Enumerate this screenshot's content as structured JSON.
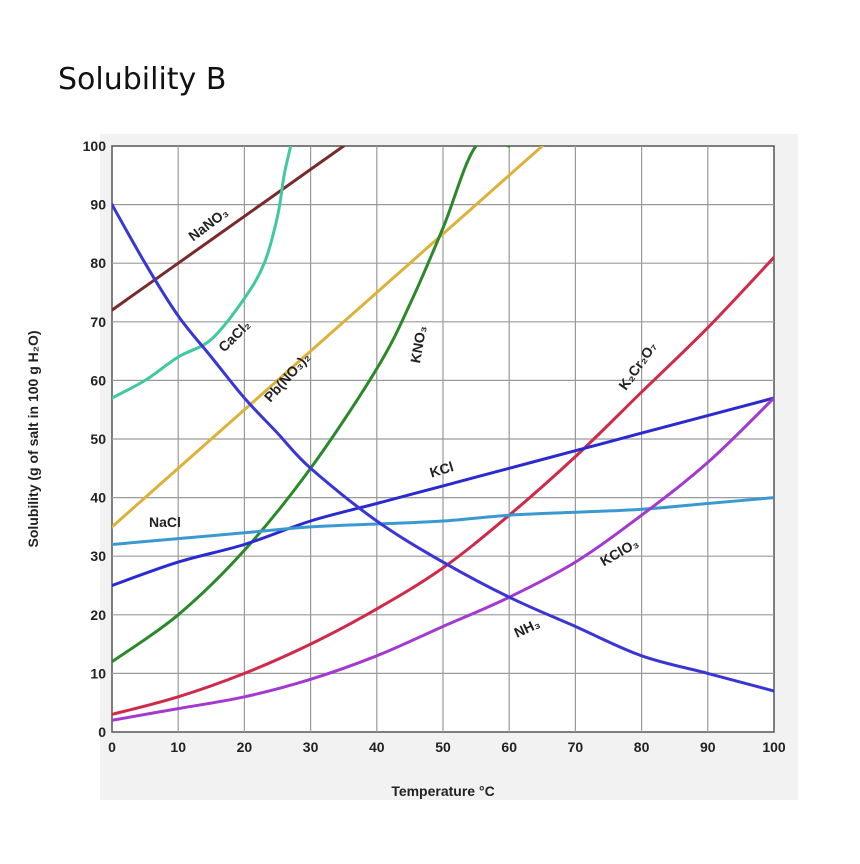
{
  "page": {
    "title": "Solubility B"
  },
  "chart_data": {
    "type": "line",
    "xlabel": "Temperature °C",
    "ylabel": "Solubility (g of salt in 100 g H₂O)",
    "xlim": [
      0,
      100
    ],
    "ylim": [
      0,
      100
    ],
    "x_ticks": [
      "0",
      "10",
      "20",
      "30",
      "40",
      "50",
      "60",
      "70",
      "80",
      "90",
      "100"
    ],
    "y_ticks": [
      "0",
      "10",
      "20",
      "30",
      "40",
      "50",
      "60",
      "70",
      "80",
      "90",
      "100"
    ],
    "grid": true,
    "series": [
      {
        "name": "NaNO₃",
        "color": "#7a2a2a",
        "x": [
          0,
          10,
          20,
          30,
          35
        ],
        "y": [
          72,
          80,
          88,
          96,
          100
        ],
        "label": {
          "x": 15,
          "y": 86,
          "angle": -37
        }
      },
      {
        "name": "CaCl₂",
        "color": "#3ec9a0",
        "x": [
          0,
          5,
          10,
          15,
          20,
          23,
          25,
          26,
          27
        ],
        "y": [
          57,
          60,
          64,
          67,
          74,
          80,
          88,
          95,
          100
        ],
        "label": {
          "x": 19,
          "y": 67,
          "angle": -45
        }
      },
      {
        "name": "Pb(NO₃)₂",
        "color": "#dcb23a",
        "x": [
          0,
          10,
          20,
          30,
          40,
          50,
          60,
          65
        ],
        "y": [
          35,
          45,
          55,
          65,
          75,
          85,
          95,
          100
        ],
        "label": {
          "x": 27,
          "y": 60,
          "angle": -48
        }
      },
      {
        "name": "KNO₃",
        "color": "#2a8a2a",
        "x": [
          0,
          10,
          20,
          30,
          40,
          45,
          50,
          55,
          60
        ],
        "y": [
          12,
          20,
          31,
          45,
          62,
          73,
          86,
          100,
          100
        ],
        "label": {
          "x": 47,
          "y": 66,
          "angle": -80
        }
      },
      {
        "name": "K₂Cr₂O₇",
        "color": "#d02a4a",
        "x": [
          0,
          10,
          20,
          30,
          40,
          50,
          60,
          70,
          80,
          90,
          100
        ],
        "y": [
          3,
          6,
          10,
          15,
          21,
          28,
          37,
          47,
          58,
          69,
          81
        ],
        "label": {
          "x": 80,
          "y": 62,
          "angle": -55
        }
      },
      {
        "name": "KCl",
        "color": "#2a2ad0",
        "x": [
          0,
          10,
          20,
          30,
          40,
          50,
          60,
          70,
          80,
          90,
          100
        ],
        "y": [
          25,
          29,
          32,
          36,
          39,
          42,
          45,
          48,
          51,
          54,
          57
        ],
        "label": {
          "x": 50,
          "y": 44,
          "angle": -17
        }
      },
      {
        "name": "NaCl",
        "color": "#3a9ad0",
        "x": [
          0,
          10,
          20,
          30,
          40,
          50,
          60,
          70,
          80,
          90,
          100
        ],
        "y": [
          32,
          33,
          34,
          35,
          35.5,
          36,
          37,
          37.5,
          38,
          39,
          40
        ],
        "label": {
          "x": 8,
          "y": 35,
          "angle": 0
        }
      },
      {
        "name": "KClO₃",
        "color": "#a23ad0",
        "x": [
          0,
          10,
          20,
          30,
          40,
          50,
          60,
          70,
          80,
          90,
          100
        ],
        "y": [
          2,
          4,
          6,
          9,
          13,
          18,
          23,
          29,
          37,
          46,
          57
        ],
        "label": {
          "x": 77,
          "y": 30,
          "angle": -30
        }
      },
      {
        "name": "NH₃",
        "color": "#3a36d6",
        "x": [
          0,
          5,
          10,
          15,
          20,
          25,
          30,
          40,
          50,
          60,
          70,
          80,
          90,
          100
        ],
        "y": [
          90,
          80,
          71,
          64,
          57,
          51,
          45,
          36,
          29,
          23,
          18,
          13,
          10,
          7
        ],
        "label": {
          "x": 63,
          "y": 17,
          "angle": -25
        }
      }
    ]
  }
}
